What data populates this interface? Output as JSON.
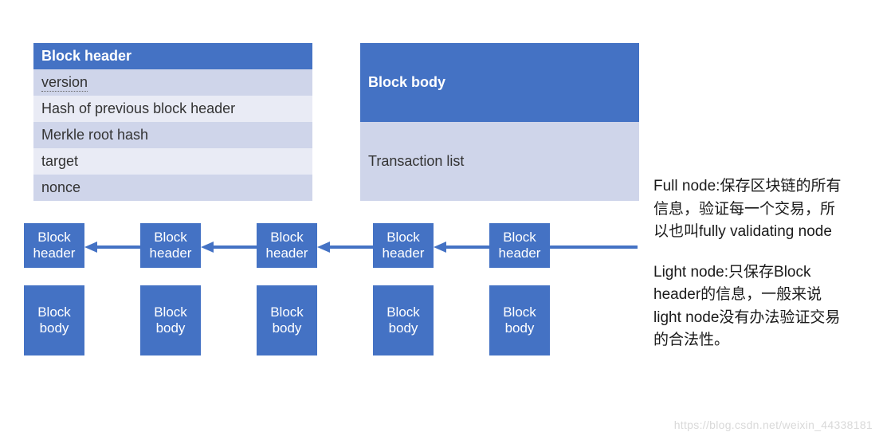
{
  "colors": {
    "primary": "#4472c4",
    "rowAlt0": "#cfd5ea",
    "rowAlt1": "#e9ebf5",
    "text": "#333333",
    "noteText": "#1a1a1a",
    "watermark": "#d9d9d9",
    "background": "#ffffff"
  },
  "typography": {
    "baseFont": "Segoe UI / Microsoft YaHei",
    "tableHeaderFontSize": 18,
    "tableCellFontSize": 18,
    "boxFontSize": 17,
    "noteFontSize": 19
  },
  "tables": {
    "header": {
      "title": "Block header",
      "rows": [
        "version",
        "Hash of previous block header",
        "Merkle root hash",
        "target",
        "nonce"
      ],
      "underlineFirst": true
    },
    "body": {
      "title": "Block body",
      "rows": [
        "Transaction list"
      ]
    }
  },
  "chain": {
    "count": 5,
    "headerLabel": "Block header",
    "bodyLabel": "Block body",
    "arrowDirection": "left",
    "arrowColor": "#4472c4",
    "arrowLineWidth": 4,
    "tailLine": true
  },
  "notes": {
    "full": "Full node:保存区块链的所有信息，验证每一个交易，所以也叫fully validating node",
    "light": "Light node:只保存Block header的信息，一般来说light node没有办法验证交易的合法性。"
  },
  "watermark": "https://blog.csdn.net/weixin_44338181"
}
